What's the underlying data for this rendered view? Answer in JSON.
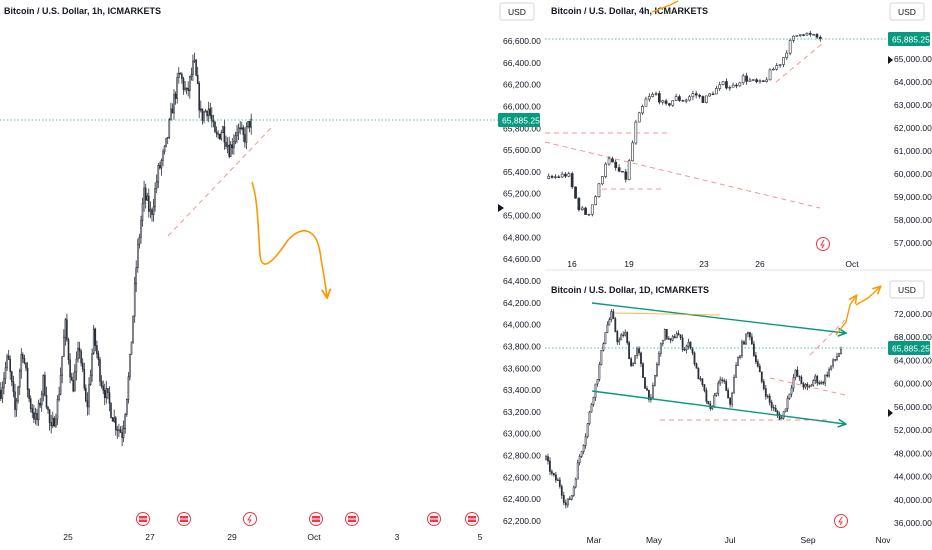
{
  "currency_label": "USD",
  "current_price": "65,885.25",
  "colors": {
    "candle": "#2a2e39",
    "price_line": "#22ab94",
    "price_box": "#089981",
    "trend_dash": "#f23645",
    "annotation_orange": "#ff9800",
    "channel_green": "#089981",
    "event_icon": "#f23645"
  },
  "chart_data": [
    {
      "type": "candlestick",
      "title": "Bitcoin / U.S. Dollar, 1h, ICMARKETS",
      "y_ticks": [
        "66,600.00",
        "66,400.00",
        "66,200.00",
        "66,000.00",
        "65,800.00",
        "65,600.00",
        "65,400.00",
        "65,200.00",
        "65,000.00",
        "64,800.00",
        "64,600.00",
        "64,400.00",
        "64,200.00",
        "64,000.00",
        "63,800.00",
        "63,600.00",
        "63,400.00",
        "63,200.00",
        "63,000.00",
        "62,800.00",
        "62,600.00",
        "62,400.00",
        "62,200.00"
      ],
      "y_tick_values": [
        66600,
        66400,
        66200,
        66000,
        65800,
        65600,
        65400,
        65200,
        65000,
        64800,
        64600,
        64400,
        64200,
        64000,
        63800,
        63600,
        63400,
        63200,
        63000,
        62800,
        62600,
        62400,
        62200
      ],
      "x_ticks": [
        "25",
        "27",
        "29",
        "Oct",
        "3",
        "5"
      ],
      "last_price": 65885.25,
      "series": [
        {
          "close_path": [
            63400,
            63700,
            63200,
            63800,
            63300,
            63100,
            63500,
            63000,
            63300,
            64000,
            63400,
            63800,
            63200,
            63900,
            63500,
            63300,
            63100,
            63000,
            63600,
            64600,
            65200,
            65000,
            65400,
            65600,
            66000,
            66300,
            66100,
            66400,
            65900,
            66000,
            65700,
            65800,
            65600,
            65800,
            65700,
            65900
          ]
        }
      ]
    },
    {
      "type": "candlestick",
      "title": "Bitcoin / U.S. Dollar, 4h, ICMARKETS",
      "y_ticks": [
        "65,000.00",
        "64,000.00",
        "63,000.00",
        "62,000.00",
        "61,000.00",
        "60,000.00",
        "59,000.00",
        "58,000.00",
        "57,000.00"
      ],
      "y_tick_values": [
        65000,
        64000,
        63000,
        62000,
        61000,
        60000,
        59000,
        58000,
        57000
      ],
      "x_ticks": [
        "16",
        "19",
        "23",
        "26",
        "Oct"
      ],
      "last_price": 65885.25,
      "series": [
        {
          "close_path": [
            59800,
            59900,
            60000,
            58600,
            58200,
            59200,
            60700,
            60200,
            59800,
            62200,
            63200,
            63500,
            62900,
            63300,
            63200,
            63500,
            63200,
            63600,
            63900,
            63800,
            64200,
            64000,
            63900,
            64500,
            64900,
            65800,
            66200,
            66000,
            65900
          ]
        }
      ]
    },
    {
      "type": "candlestick",
      "title": "Bitcoin / U.S. Dollar, 1D, ICMARKETS",
      "y_ticks": [
        "72,000.00",
        "68,000.00",
        "64,000.00",
        "60,000.00",
        "56,000.00",
        "52,000.00",
        "48,000.00",
        "44,000.00",
        "40,000.00",
        "36,000.00"
      ],
      "y_tick_values": [
        72000,
        68000,
        64000,
        60000,
        56000,
        52000,
        48000,
        44000,
        40000,
        36000
      ],
      "x_ticks": [
        "Mar",
        "May",
        "Jul",
        "Sep",
        "Nov"
      ],
      "last_price": 65885.25,
      "series": [
        {
          "close_path": [
            47000,
            44000,
            43000,
            39000,
            41000,
            47000,
            51000,
            57000,
            62000,
            69000,
            72000,
            67000,
            69000,
            63000,
            66000,
            60000,
            57000,
            64000,
            69000,
            67000,
            69000,
            66000,
            67000,
            62000,
            59000,
            55000,
            59000,
            61000,
            56000,
            63000,
            67000,
            69000,
            64000,
            60000,
            57000,
            55000,
            54000,
            58000,
            62000,
            60000,
            59000,
            61000,
            60000,
            62000,
            64000,
            65900
          ]
        }
      ]
    }
  ]
}
